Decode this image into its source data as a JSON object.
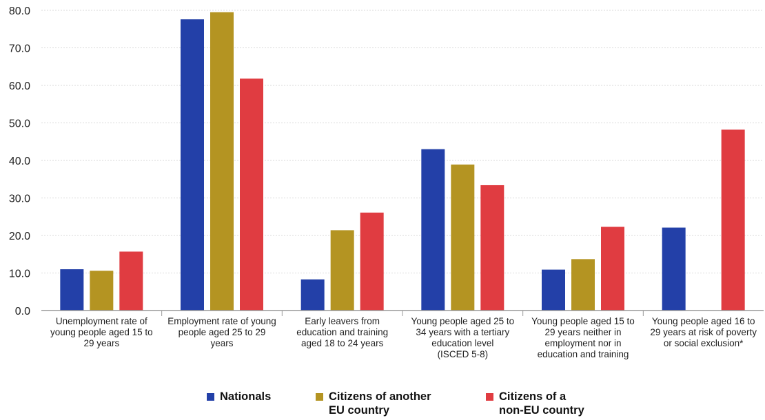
{
  "chart_data": {
    "type": "bar",
    "categories": [
      [
        "Unemployment rate of",
        "young people aged 15 to",
        "29 years"
      ],
      [
        "Employment rate of young",
        "people aged 25 to 29",
        "years"
      ],
      [
        "Early leavers from",
        "education and training",
        "aged 18 to 24 years"
      ],
      [
        "Young people aged 25 to",
        "34 years with a tertiary",
        "education level",
        "(ISCED 5-8)"
      ],
      [
        "Young people aged 15 to",
        "29 years neither in",
        "employment nor in",
        "education and training"
      ],
      [
        "Young people aged 16 to",
        "29 years at risk of poverty",
        "or social exclusion*"
      ]
    ],
    "series": [
      {
        "name": "Nationals",
        "color": "#2340a8",
        "values": [
          11.0,
          77.6,
          8.3,
          43.0,
          10.9,
          22.1
        ]
      },
      {
        "name": "Citizens of another\nEU country",
        "color": "#b49422",
        "values": [
          10.6,
          79.5,
          21.4,
          38.9,
          13.7,
          null
        ]
      },
      {
        "name": "Citizens of a\nnon-EU country",
        "color": "#e03c41",
        "values": [
          15.7,
          61.8,
          26.1,
          33.4,
          22.3,
          48.2
        ]
      }
    ],
    "yticks": [
      "0.0",
      "10.0",
      "20.0",
      "30.0",
      "40.0",
      "50.0",
      "60.0",
      "70.0",
      "80.0"
    ],
    "ylim": [
      0,
      80
    ],
    "grid": true,
    "legend_position": "bottom",
    "title": "",
    "xlabel": "",
    "ylabel": ""
  }
}
